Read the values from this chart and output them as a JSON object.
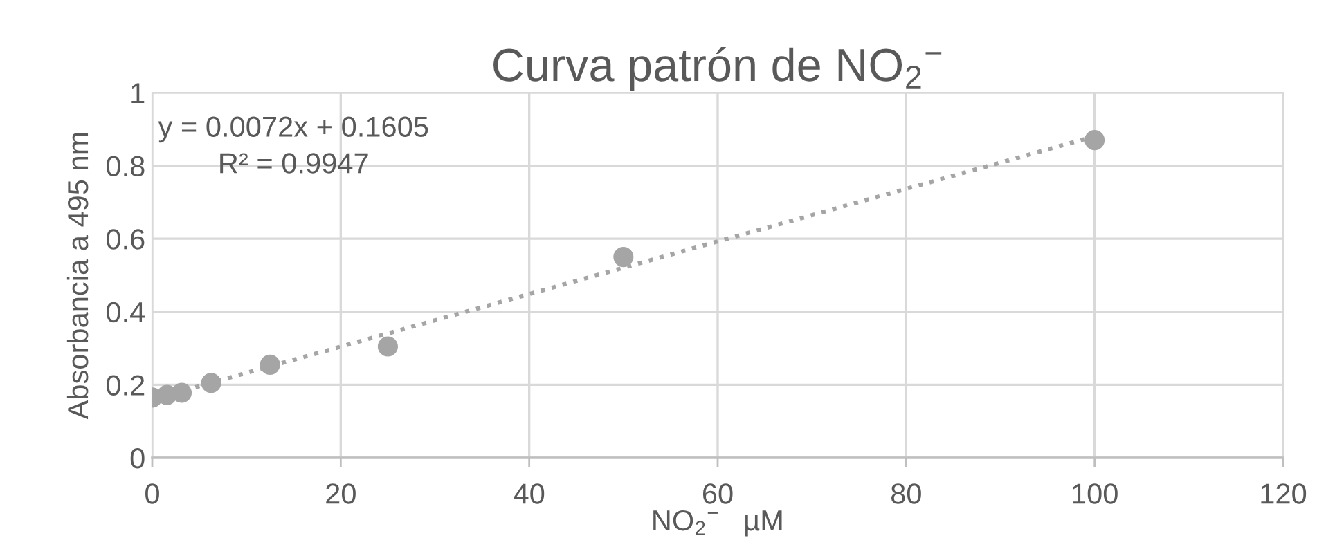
{
  "chart_data": {
    "type": "scatter",
    "title": "Curva patrón de NO$_{2}$$^{−}$",
    "xlabel": "NO$_{2}$$^{−}$   µM",
    "ylabel": "Absorbancia a 495 nm",
    "x": [
      0,
      1.5625,
      3.125,
      6.25,
      12.5,
      25,
      50,
      100
    ],
    "series": [
      {
        "color": "#a5a5a5",
        "values": [
          0.165,
          0.172,
          0.178,
          0.205,
          0.255,
          0.305,
          0.55,
          0.87
        ],
        "marker": "circle"
      },
      {
        "type": "line",
        "color": "#a5a5a5",
        "x": [
          0,
          100
        ],
        "values": [
          0.1605,
          0.8805
        ],
        "line_style": "dotted",
        "marker": "none"
      }
    ],
    "annotations": [
      "y = 0.0072x + 0.1605",
      "R² = 0.9947"
    ],
    "xlim": [
      0,
      120
    ],
    "xticks": [
      0,
      20,
      40,
      60,
      80,
      100,
      120
    ],
    "ylim": [
      0,
      1
    ],
    "yticks": [
      0,
      0.2,
      0.4,
      0.6,
      0.8,
      1
    ],
    "grid": true,
    "legend": false
  }
}
